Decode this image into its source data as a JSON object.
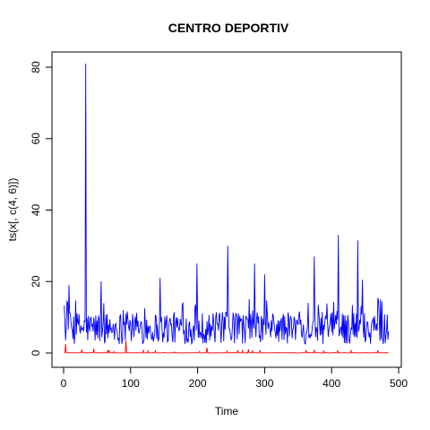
{
  "chart_data": {
    "type": "line",
    "title": "CENTRO DEPORTIV",
    "xlabel": "Time",
    "ylabel": "ts(x[, c(4, 6)])",
    "xlim": [
      0,
      485
    ],
    "ylim": [
      0,
      81
    ],
    "xticks": [
      0,
      100,
      200,
      300,
      400,
      500
    ],
    "yticks": [
      0,
      20,
      40,
      60,
      80
    ],
    "grid": false,
    "legend": "none",
    "series": [
      {
        "color": "#0000ff",
        "n": 485,
        "peaks": [
          {
            "x": 8,
            "y": 19
          },
          {
            "x": 33,
            "y": 81
          },
          {
            "x": 56,
            "y": 20
          },
          {
            "x": 93,
            "y": 11
          },
          {
            "x": 121,
            "y": 12.5
          },
          {
            "x": 144,
            "y": 21
          },
          {
            "x": 199,
            "y": 25
          },
          {
            "x": 245,
            "y": 30
          },
          {
            "x": 285,
            "y": 25
          },
          {
            "x": 300,
            "y": 22
          },
          {
            "x": 374,
            "y": 27
          },
          {
            "x": 410,
            "y": 33
          },
          {
            "x": 439,
            "y": 31.5
          },
          {
            "x": 446,
            "y": 20.5
          },
          {
            "x": 473,
            "y": 15
          }
        ],
        "base": 7,
        "spread": 4.5
      },
      {
        "color": "#ff0000",
        "n": 485,
        "peaks": [
          {
            "x": 3,
            "y": 2.5
          },
          {
            "x": 27,
            "y": 0.8
          },
          {
            "x": 45,
            "y": 1.2
          },
          {
            "x": 66,
            "y": 0.8
          },
          {
            "x": 93,
            "y": 3.5
          },
          {
            "x": 126,
            "y": 0.6
          },
          {
            "x": 214,
            "y": 1.5
          },
          {
            "x": 276,
            "y": 1
          },
          {
            "x": 293,
            "y": 0.8
          },
          {
            "x": 362,
            "y": 0.8
          },
          {
            "x": 409,
            "y": 0.6
          },
          {
            "x": 469,
            "y": 0.8
          }
        ],
        "base": 0.1,
        "spread": 0.2
      }
    ]
  }
}
